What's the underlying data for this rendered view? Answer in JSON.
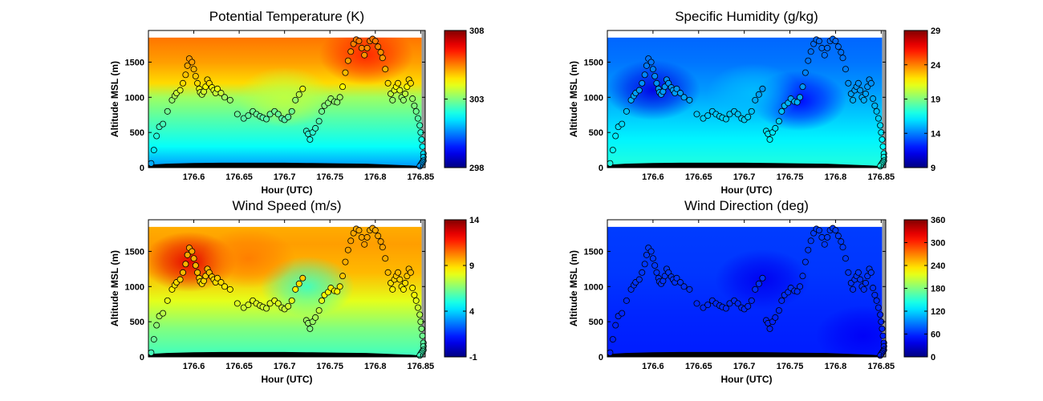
{
  "chart_data": [
    {
      "type": "heatmap",
      "title": "Potential Temperature (K)",
      "xlabel": "Hour (UTC)",
      "ylabel": "Altitude MSL (m)",
      "xlim": [
        176.55,
        176.855
      ],
      "ylim": [
        0,
        1950
      ],
      "xticks": [
        176.6,
        176.65,
        176.7,
        176.75,
        176.8,
        176.85
      ],
      "yticks": [
        0,
        500,
        1000,
        1500
      ],
      "colorbar": {
        "range": [
          298,
          308
        ],
        "ticks": [
          298,
          303,
          308
        ]
      },
      "field": {
        "bands": [
          {
            "altitude": 0,
            "value": 300.7
          },
          {
            "altitude": 300,
            "value": 301.8
          },
          {
            "altitude": 700,
            "value": 302.6
          },
          {
            "altitude": 1000,
            "value": 303.3
          },
          {
            "altitude": 1200,
            "value": 304.6
          },
          {
            "altitude": 1500,
            "value": 305.2
          },
          {
            "altitude": 1850,
            "value": 305.6
          }
        ],
        "features": [
          {
            "x": 176.79,
            "altitude": 1600,
            "value": 306.4
          },
          {
            "x": 176.7,
            "altitude": 1000,
            "value": 303.6
          }
        ]
      }
    },
    {
      "type": "heatmap",
      "title": "Specific Humidity (g/kg)",
      "xlabel": "Hour (UTC)",
      "ylabel": "Altitude MSL (m)",
      "xlim": [
        176.55,
        176.855
      ],
      "ylim": [
        0,
        1950
      ],
      "xticks": [
        176.6,
        176.65,
        176.7,
        176.75,
        176.8,
        176.85
      ],
      "yticks": [
        0,
        500,
        1000,
        1500
      ],
      "colorbar": {
        "range": [
          9,
          29
        ],
        "ticks": [
          9,
          14,
          19,
          24,
          29
        ]
      },
      "field": {
        "bands": [
          {
            "altitude": 0,
            "value": 17.2
          },
          {
            "altitude": 400,
            "value": 16.3
          },
          {
            "altitude": 800,
            "value": 15.3
          },
          {
            "altitude": 1100,
            "value": 14.5
          },
          {
            "altitude": 1500,
            "value": 13.8
          },
          {
            "altitude": 1850,
            "value": 13.5
          }
        ],
        "features": [
          {
            "x": 176.6,
            "altitude": 1100,
            "value": 11.0
          },
          {
            "x": 176.76,
            "altitude": 950,
            "value": 11.5
          },
          {
            "x": 176.71,
            "altitude": 1050,
            "value": 15.2
          }
        ]
      }
    },
    {
      "type": "heatmap",
      "title": "Wind Speed (m/s)",
      "xlabel": "Hour (UTC)",
      "ylabel": "Altitude MSL (m)",
      "xlim": [
        176.55,
        176.855
      ],
      "ylim": [
        0,
        1950
      ],
      "xticks": [
        176.6,
        176.65,
        176.7,
        176.75,
        176.8,
        176.85
      ],
      "yticks": [
        0,
        500,
        1000,
        1500
      ],
      "colorbar": {
        "range": [
          -1,
          14
        ],
        "ticks": [
          -1,
          4,
          9,
          14
        ]
      },
      "field": {
        "bands": [
          {
            "altitude": 0,
            "value": 5.5
          },
          {
            "altitude": 400,
            "value": 6.5
          },
          {
            "altitude": 800,
            "value": 8.0
          },
          {
            "altitude": 1200,
            "value": 9.4
          },
          {
            "altitude": 1600,
            "value": 9.8
          },
          {
            "altitude": 1850,
            "value": 9.6
          }
        ],
        "features": [
          {
            "x": 176.595,
            "altitude": 1350,
            "value": 12.5
          },
          {
            "x": 176.725,
            "altitude": 1000,
            "value": 5.5
          },
          {
            "x": 176.66,
            "altitude": 1400,
            "value": 10.3
          }
        ]
      }
    },
    {
      "type": "heatmap",
      "title": "Wind Direction (deg)",
      "xlabel": "Hour (UTC)",
      "ylabel": "Altitude MSL (m)",
      "xlim": [
        176.55,
        176.855
      ],
      "ylim": [
        0,
        1950
      ],
      "xticks": [
        176.6,
        176.65,
        176.7,
        176.75,
        176.8,
        176.85
      ],
      "yticks": [
        0,
        500,
        1000,
        1500
      ],
      "colorbar": {
        "range": [
          0,
          360
        ],
        "ticks": [
          0,
          60,
          120,
          180,
          240,
          300,
          360
        ]
      },
      "field": {
        "bands": [
          {
            "altitude": 0,
            "value": 55
          },
          {
            "altitude": 600,
            "value": 58
          },
          {
            "altitude": 1200,
            "value": 64
          },
          {
            "altitude": 1850,
            "value": 66
          }
        ],
        "features": [
          {
            "x": 176.72,
            "altitude": 1100,
            "value": 40
          },
          {
            "x": 176.83,
            "altitude": 300,
            "value": 42
          }
        ]
      }
    }
  ],
  "flight_track": {
    "hour": [
      176.553,
      176.556,
      176.559,
      176.562,
      176.566,
      176.571,
      176.576,
      176.579,
      176.581,
      176.585,
      176.588,
      176.591,
      176.593,
      176.595,
      176.598,
      176.6,
      176.602,
      176.604,
      176.606,
      176.607,
      176.609,
      176.611,
      176.613,
      176.615,
      176.617,
      176.62,
      176.622,
      176.624,
      176.626,
      176.63,
      176.634,
      176.64,
      176.648,
      176.655,
      176.66,
      176.665,
      176.669,
      176.673,
      176.676,
      176.68,
      176.684,
      176.689,
      176.693,
      176.697,
      176.7,
      176.704,
      176.708,
      176.712,
      176.716,
      176.72,
      176.724,
      176.726,
      176.728,
      176.731,
      176.734,
      176.738,
      176.741,
      176.744,
      176.748,
      176.751,
      176.755,
      176.758,
      176.761,
      176.764,
      176.767,
      176.77,
      176.773,
      176.776,
      176.779,
      176.782,
      176.785,
      176.788,
      176.791,
      176.794,
      176.797,
      176.8,
      176.803,
      176.806,
      176.808,
      176.811,
      176.814,
      176.817,
      176.819,
      176.821,
      176.823,
      176.825,
      176.827,
      176.829,
      176.831,
      176.833,
      176.835,
      176.837,
      176.839,
      176.841,
      176.843,
      176.845,
      176.847,
      176.849,
      176.85,
      176.851,
      176.852,
      176.853,
      176.853,
      176.853,
      176.852,
      176.851,
      176.85,
      176.849
    ],
    "altitude": [
      60,
      250,
      450,
      580,
      620,
      800,
      960,
      1020,
      1060,
      1100,
      1200,
      1320,
      1450,
      1550,
      1500,
      1400,
      1300,
      1200,
      1120,
      1070,
      1040,
      1080,
      1150,
      1250,
      1200,
      1140,
      1100,
      1060,
      1120,
      1060,
      1000,
      960,
      760,
      700,
      740,
      800,
      760,
      730,
      710,
      690,
      760,
      800,
      760,
      700,
      680,
      720,
      800,
      960,
      1040,
      1120,
      520,
      480,
      400,
      500,
      560,
      660,
      800,
      880,
      920,
      980,
      940,
      930,
      1000,
      1150,
      1350,
      1520,
      1650,
      1760,
      1820,
      1800,
      1700,
      1600,
      1700,
      1800,
      1830,
      1800,
      1720,
      1640,
      1560,
      1400,
      1200,
      1050,
      960,
      1100,
      1150,
      1200,
      1100,
      1000,
      960,
      1050,
      1150,
      1250,
      1200,
      980,
      880,
      800,
      700,
      600,
      500,
      400,
      300,
      200,
      150,
      100,
      80,
      60,
      40,
      20
    ]
  },
  "terrain": {
    "hour": [
      176.55,
      176.57,
      176.6,
      176.63,
      176.66,
      176.7,
      176.73,
      176.76,
      176.79,
      176.82,
      176.84,
      176.85
    ],
    "altitude": [
      40,
      55,
      65,
      70,
      70,
      70,
      65,
      60,
      55,
      40,
      30,
      20
    ]
  }
}
